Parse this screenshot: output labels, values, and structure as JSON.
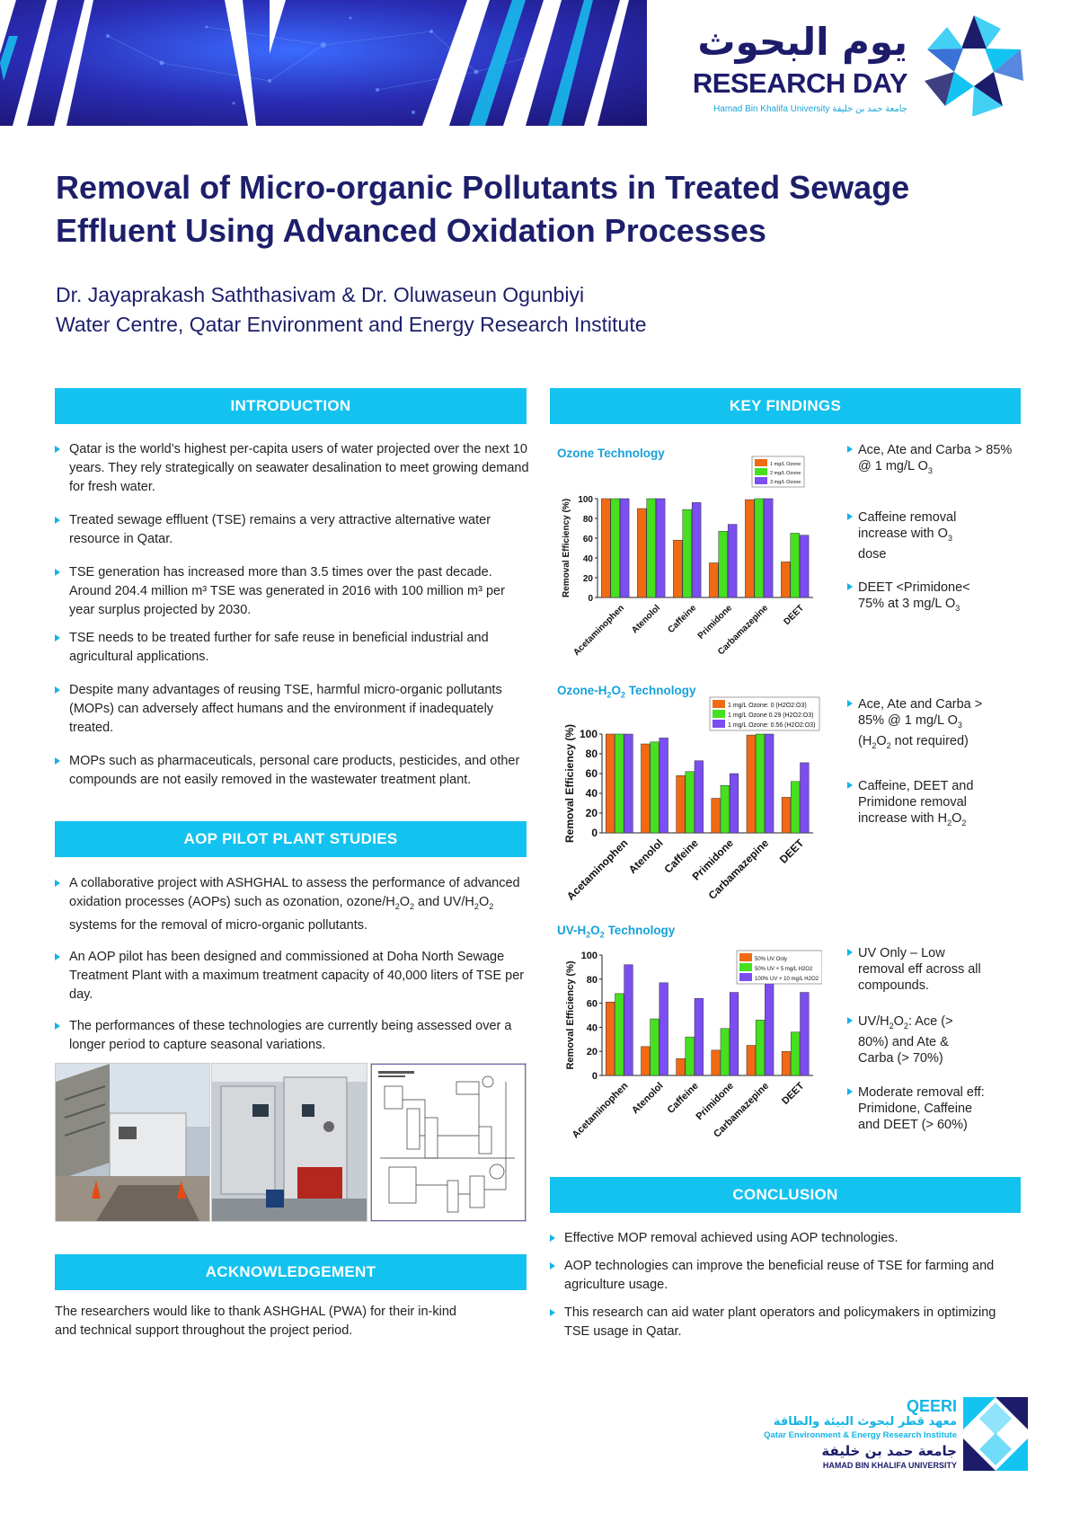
{
  "header": {
    "logo_arabic": "يوم البحوث",
    "logo_english": "RESEARCH DAY",
    "logo_sub": "Hamad Bin Khalifa University  جامعة حمد بن خليفة"
  },
  "title": "Removal of Micro-organic Pollutants in Treated Sewage Effluent Using Advanced Oxidation Processes",
  "authors": "Dr. Jayaprakash Saththasivam & Dr. Oluwaseun Ogunbiyi",
  "affiliation": "Water Centre, Qatar Environment and Energy Research Institute",
  "sections": {
    "introduction": {
      "heading": "INTRODUCTION",
      "bullets": [
        "Qatar is the world’s highest per-capita users of water projected over the next 10 years. They rely strategically on seawater desalination to meet growing demand for fresh water.",
        "Treated sewage effluent (TSE) remains a very attractive alternative water resource in Qatar.",
        "TSE generation has increased more than 3.5 times over the past decade. Around 204.4 million m³ TSE was generated in 2016 with 100 million m³ per year surplus projected by 2030.",
        "TSE needs to be treated further for safe reuse in beneficial industrial and agricultural applications.",
        "Despite many advantages of reusing TSE, harmful micro-organic pollutants (MOPs) can adversely affect humans and the environment if inadequately treated.",
        "MOPs such as pharmaceuticals, personal care products, pesticides, and other compounds are not easily removed in the wastewater treatment plant."
      ]
    },
    "aop": {
      "heading": "AOP PILOT PLANT STUDIES",
      "b1_pre": "A collaborative project with ASHGHAL to assess the performance of advanced oxidation processes (AOPs) such as ozonation, ozone/H",
      "b1_mid": "O",
      "b1_mid2": " and UV/H",
      "b1_post": " systems for the removal of micro-organic pollutants.",
      "sub2": "2",
      "b2": "An AOP pilot has been designed and commissioned at Doha North Sewage Treatment Plant with a maximum treatment capacity of 40,000 liters of TSE per day.",
      "b3": "The performances of these technologies are currently being assessed over a longer period to capture seasonal variations."
    },
    "acknowledgement": {
      "heading": "ACKNOWLEDGEMENT",
      "text": "The researchers would like to thank ASHGHAL (PWA) for their in-kind and technical support throughout the project period."
    },
    "key_findings": {
      "heading": "KEY FINDINGS"
    },
    "conclusion": {
      "heading": "CONCLUSION",
      "bullets": [
        "Effective MOP removal achieved using AOP technologies.",
        "AOP technologies can improve the beneficial reuse of TSE for farming and agriculture usage.",
        "This research can aid water plant operators and policymakers in optimizing TSE usage in Qatar."
      ]
    }
  },
  "findings": {
    "ozone": {
      "f1a": "Ace, Ate and Carba > 85% @ 1 mg/L O",
      "f2a": "Caffeine removal increase with O",
      "f2b": " dose",
      "f3a": "DEET <Primidone< 75% at 3 mg/L O",
      "sub3": "3"
    },
    "ozone_h2o2": {
      "f1a": "Ace, Ate and Carba > 85% @ 1 mg/L O",
      "f1b": " (H",
      "f1c": "O",
      "f1d": " not required)",
      "f2a": "Caffeine, DEET and Primidone removal increase with H",
      "f2b": "O",
      "sub2": "2",
      "sub3": "3"
    },
    "uv_h2o2": {
      "f1": "UV Only – Low removal eff across all compounds.",
      "f2a": "UV/H",
      "f2b": "O",
      "f2c": ": Ace (> 80%) and Ate & Carba (> 70%)",
      "f3": "Moderate removal eff: Primidone, Caffeine and DEET (> 60%)",
      "sub2": "2"
    }
  },
  "footer": {
    "qeeri": "QEERI",
    "qeeri_arabic": "معهد قطر لبحوث البيئة والطاقة",
    "qeeri_full": "Qatar Environment & Energy Research Institute",
    "hbku_arabic": "جامعة حمد بن خليفة",
    "hbku_english": "HAMAD BIN KHALIFA UNIVERSITY"
  },
  "chart_data": [
    {
      "type": "bar",
      "title": "Ozone Technology",
      "ylabel": "Removal Efficiency (%)",
      "ylim": [
        0,
        100
      ],
      "yticks": [
        0,
        20,
        40,
        60,
        80,
        100
      ],
      "categories": [
        "Acetaminophen",
        "Atenolol",
        "Caffeine",
        "Primidone",
        "Carbamazepine",
        "DEET"
      ],
      "series": [
        {
          "name": "1 mg/L Ozone",
          "color": "#f06a14",
          "values": [
            100,
            90,
            58,
            35,
            99,
            36
          ]
        },
        {
          "name": "2 mg/L Ozone",
          "color": "#45e01f",
          "values": [
            100,
            100,
            89,
            67,
            100,
            65
          ]
        },
        {
          "name": "3 mg/L Ozone",
          "color": "#7a4ef0",
          "values": [
            100,
            100,
            96,
            74,
            100,
            63
          ]
        }
      ]
    },
    {
      "type": "bar",
      "title": "Ozone-H2O2 Technology",
      "ylabel": "Removal Efficiency (%)",
      "ylim": [
        0,
        100
      ],
      "yticks": [
        0,
        20,
        40,
        60,
        80,
        100
      ],
      "categories": [
        "Acetaminophen",
        "Atenolol",
        "Caffeine",
        "Primidone",
        "Carbamazepine",
        "DEET"
      ],
      "series": [
        {
          "name": "1 mg/L Ozone: 0 (H2O2:O3)",
          "color": "#f06a14",
          "values": [
            100,
            90,
            58,
            35,
            99,
            36
          ]
        },
        {
          "name": "1 mg/L Ozone 0.29 (H2O2:O3)",
          "color": "#45e01f",
          "values": [
            100,
            92,
            62,
            48,
            100,
            52
          ]
        },
        {
          "name": "1 mg/L Ozone: 0.56 (H2O2:O3)",
          "color": "#7a4ef0",
          "values": [
            100,
            96,
            73,
            60,
            100,
            71
          ]
        }
      ]
    },
    {
      "type": "bar",
      "title": "UV-H2O2 Technology",
      "ylabel": "Removal Efficiency (%)",
      "ylim": [
        0,
        100
      ],
      "yticks": [
        0,
        20,
        40,
        60,
        80,
        100
      ],
      "categories": [
        "Acetaminophen",
        "Atenolol",
        "Caffeine",
        "Primidone",
        "Carbamazepine",
        "DEET"
      ],
      "series": [
        {
          "name": "50% UV Only",
          "color": "#f06a14",
          "values": [
            61,
            24,
            14,
            21,
            25,
            20
          ]
        },
        {
          "name": "50% UV + 5 mg/L H2O2",
          "color": "#45e01f",
          "values": [
            68,
            47,
            32,
            39,
            46,
            36
          ]
        },
        {
          "name": "100% UV + 10 mg/L H2O2",
          "color": "#7a4ef0",
          "values": [
            92,
            77,
            64,
            69,
            78,
            69
          ]
        }
      ]
    }
  ]
}
